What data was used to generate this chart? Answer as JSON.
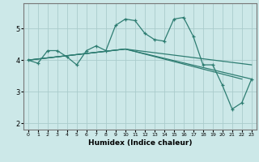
{
  "title": "",
  "xlabel": "Humidex (Indice chaleur)",
  "ylabel": "",
  "bg_color": "#cce8e8",
  "grid_color": "#aacccc",
  "line_color": "#2e7d72",
  "ylim": [
    1.8,
    5.8
  ],
  "xlim": [
    -0.5,
    23.5
  ],
  "yticks": [
    2,
    3,
    4,
    5
  ],
  "xticks": [
    0,
    1,
    2,
    3,
    4,
    5,
    6,
    7,
    8,
    9,
    10,
    11,
    12,
    13,
    14,
    15,
    16,
    17,
    18,
    19,
    20,
    21,
    22,
    23
  ],
  "lines": [
    {
      "x": [
        0,
        1,
        2,
        3,
        4,
        5,
        6,
        7,
        8,
        9,
        10,
        11,
        12,
        13,
        14,
        15,
        16,
        17,
        18,
        19,
        20,
        21,
        22,
        23
      ],
      "y": [
        4.0,
        3.9,
        4.3,
        4.3,
        4.1,
        3.85,
        4.3,
        4.45,
        4.3,
        5.1,
        5.3,
        5.25,
        4.85,
        4.65,
        4.6,
        5.3,
        5.35,
        4.75,
        3.85,
        3.85,
        3.2,
        2.45,
        2.65,
        3.4
      ],
      "marker": true
    },
    {
      "x": [
        0,
        10,
        23
      ],
      "y": [
        4.0,
        4.35,
        3.85
      ],
      "marker": false
    },
    {
      "x": [
        0,
        10,
        22
      ],
      "y": [
        4.0,
        4.35,
        3.4
      ],
      "marker": false
    },
    {
      "x": [
        0,
        10,
        23
      ],
      "y": [
        4.0,
        4.35,
        3.4
      ],
      "marker": false
    }
  ]
}
